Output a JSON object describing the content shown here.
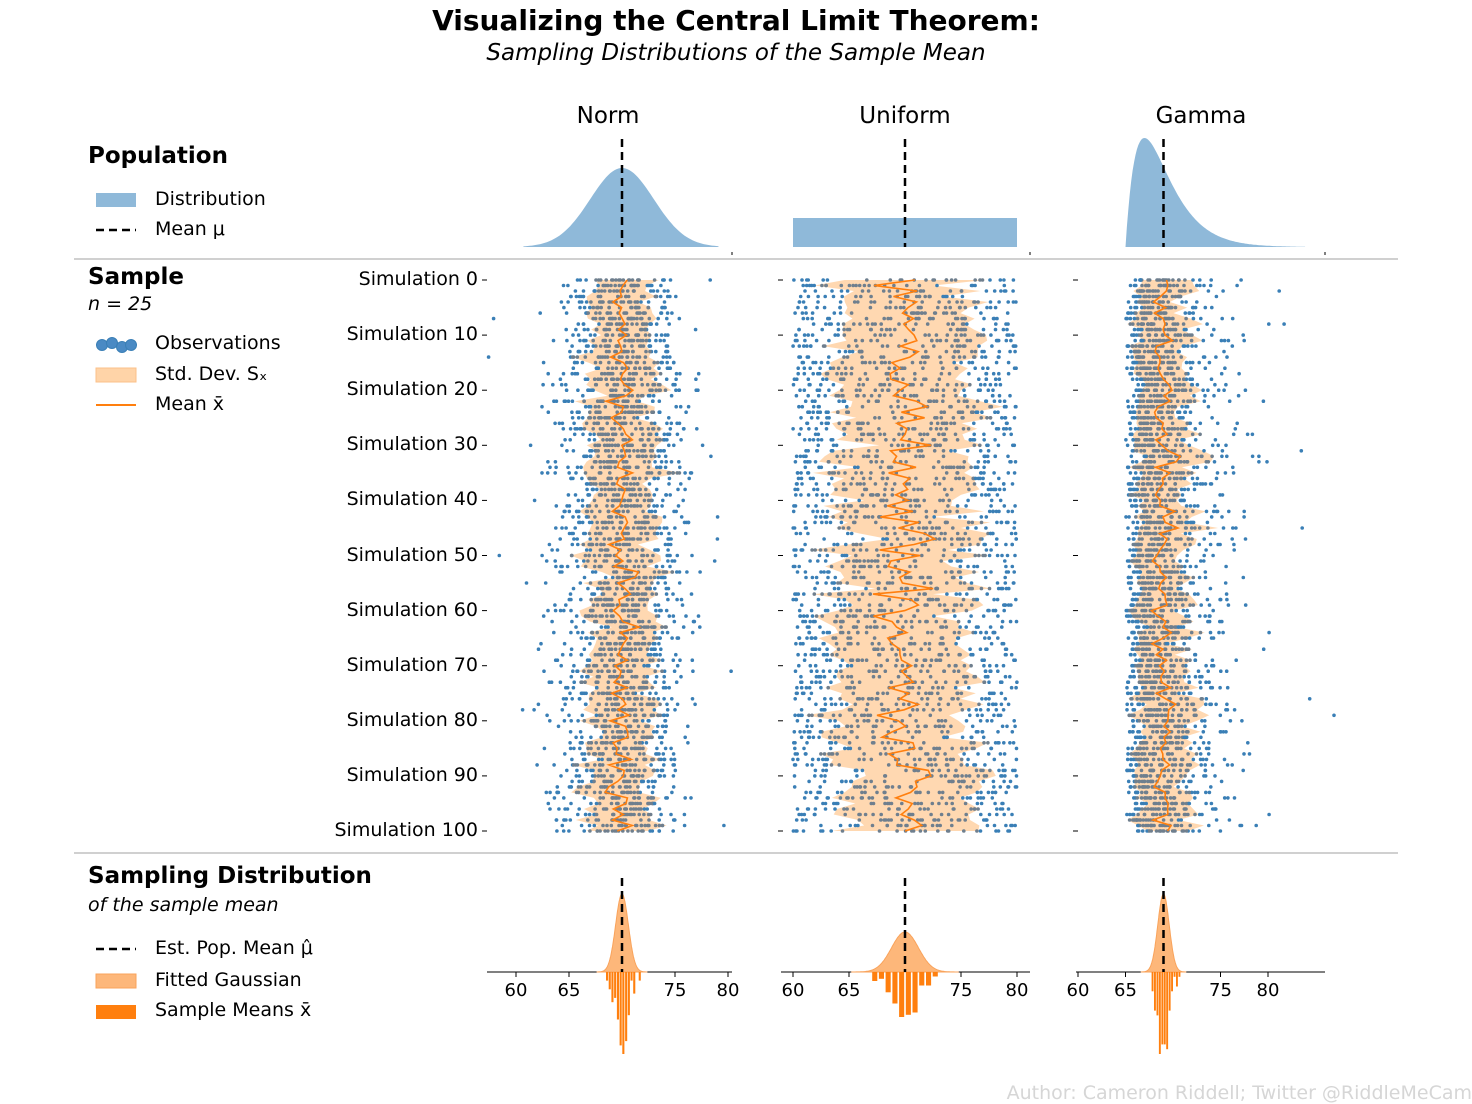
{
  "header": {
    "title": "Visualizing the Central Limit Theorem:",
    "subtitle": "Sampling Distributions of the Sample Mean"
  },
  "sections": {
    "population": {
      "heading": "Population",
      "legend": [
        "Distribution",
        "Mean μ"
      ]
    },
    "sample": {
      "heading": "Sample",
      "subheading": "n = 25",
      "legend": [
        "Observations",
        "Std. Dev. Sₓ",
        "Mean x̄"
      ]
    },
    "sampling": {
      "heading": "Sampling Distribution",
      "subheading": "of the sample mean",
      "legend": [
        "Est. Pop. Mean μ̂",
        "Fitted Gaussian",
        "Sample Means x̄"
      ]
    }
  },
  "author": "Author: Cameron Riddell; Twitter @RiddleMeCam",
  "colors": {
    "population": "#8fb9d9",
    "observation": "#3a7fb6",
    "observation_dark": "#6f7f8e",
    "std_band": "#ffd4a8",
    "mean_line": "#ff7f0e",
    "fitted": "#fdb77a",
    "sample_means": "#ff7f0e"
  },
  "chart_data": {
    "type": "scatter",
    "columns": [
      {
        "name": "Norm",
        "population_mean": 70,
        "population_sd": 3,
        "sample_sd": 3,
        "est_mean": 70,
        "sd_of_means": 0.6,
        "xticks": [
          60,
          65,
          75,
          80
        ]
      },
      {
        "name": "Uniform",
        "population_mean": 70,
        "population_range": [
          60,
          80
        ],
        "sample_sd": 5.8,
        "est_mean": 70,
        "sd_of_means": 1.2,
        "xticks": [
          60,
          65,
          75,
          80
        ]
      },
      {
        "name": "Gamma",
        "population_mean": 69,
        "population_shape": 2,
        "sample_sd": 3,
        "est_mean": 69,
        "sd_of_means": 0.6,
        "xticks": [
          60,
          65,
          75,
          80
        ]
      }
    ],
    "simulations": {
      "count": 101,
      "tick_labels": [
        "Simulation 0",
        "Simulation 10",
        "Simulation 20",
        "Simulation 30",
        "Simulation 40",
        "Simulation 50",
        "Simulation 60",
        "Simulation 70",
        "Simulation 80",
        "Simulation 90",
        "Simulation 100"
      ],
      "sample_size": 25
    },
    "xlim": [
      57.5,
      80.5
    ]
  }
}
